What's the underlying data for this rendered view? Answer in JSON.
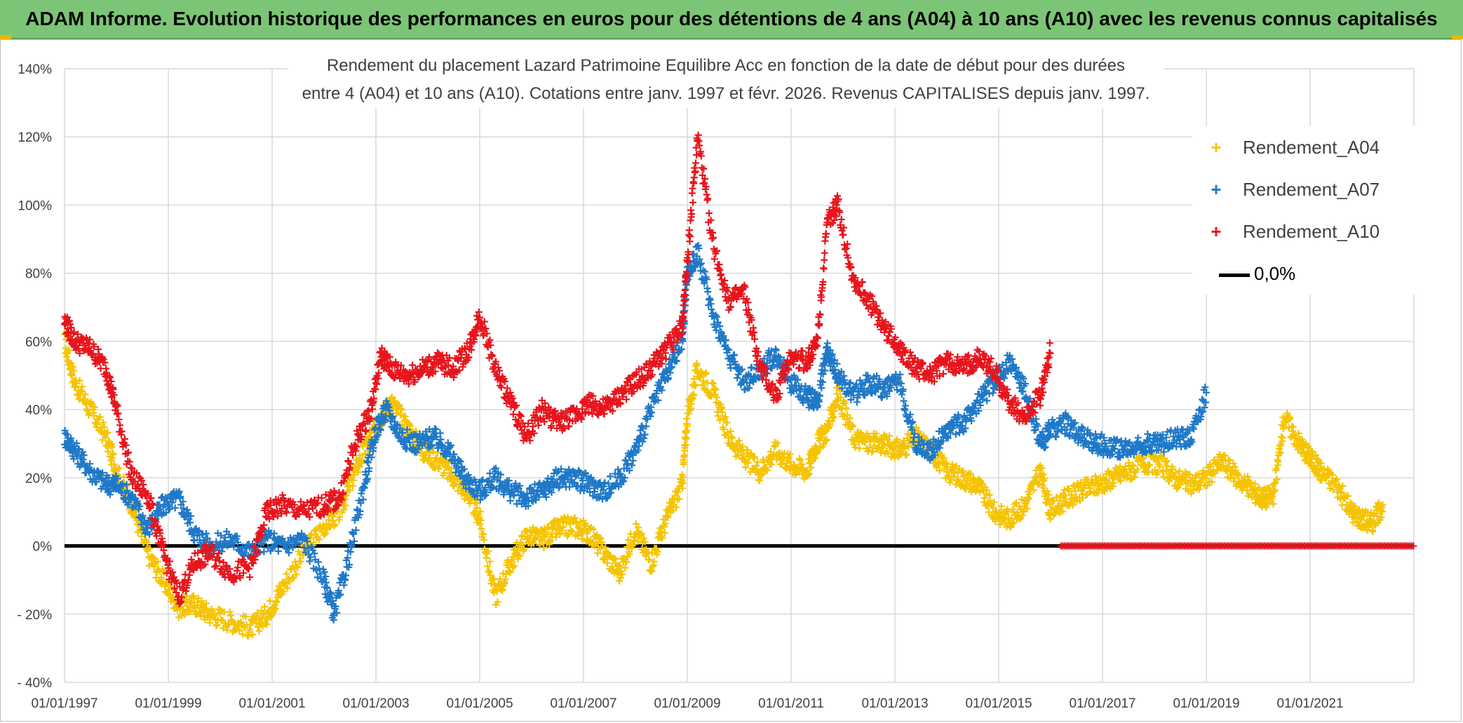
{
  "banner": {
    "title": "ADAM Informe. Evolution historique des performances en euros pour des détentions de 4 ans (A04) à 10 ans (A10) avec les revenus connus capitalisés"
  },
  "chart_data": {
    "type": "scatter",
    "title_line1": "Rendement du placement Lazard Patrimoine Equilibre Acc en fonction de la date de début pour des durées",
    "title_line2": "entre 4 (A04) et 10 ans (A10). Cotations entre janv. 1997 et févr. 2026. Revenus CAPITALISES depuis janv. 1997.",
    "xlabel": "",
    "ylabel": "",
    "x_range": [
      "01/01/1997",
      "01/01/2023"
    ],
    "ylim": [
      -40,
      140
    ],
    "y_ticks": [
      "140%",
      "120%",
      "100%",
      "80%",
      "60%",
      "40%",
      "20%",
      "0%",
      "- 20%",
      "- 40%"
    ],
    "y_tick_values": [
      140,
      120,
      100,
      80,
      60,
      40,
      20,
      0,
      -20,
      -40
    ],
    "x_ticks": [
      "01/01/1997",
      "01/01/1999",
      "01/01/2001",
      "01/01/2003",
      "01/01/2005",
      "01/01/2007",
      "01/01/2009",
      "01/01/2011",
      "01/01/2013",
      "01/01/2015",
      "01/01/2017",
      "01/01/2019",
      "01/01/2021"
    ],
    "x_tick_values": [
      1997,
      1999,
      2001,
      2003,
      2005,
      2007,
      2009,
      2011,
      2013,
      2015,
      2017,
      2019,
      2021
    ],
    "grid": true,
    "legend_position": "top-right",
    "series": [
      {
        "name": "Rendement_A04",
        "color": "#f5c400",
        "x": [
          1997.0,
          1997.2,
          1997.5,
          1997.8,
          1998.0,
          1998.3,
          1998.6,
          1998.9,
          1999.2,
          1999.5,
          1999.8,
          2000.2,
          2000.6,
          2000.9,
          2001.2,
          2001.6,
          2002.0,
          2002.3,
          2002.6,
          2002.9,
          2003.1,
          2003.3,
          2003.6,
          2003.9,
          2004.2,
          2004.5,
          2004.8,
          2005.0,
          2005.3,
          2005.6,
          2005.9,
          2006.2,
          2006.5,
          2006.8,
          2007.1,
          2007.4,
          2007.7,
          2008.0,
          2008.3,
          2008.6,
          2008.9,
          2009.0,
          2009.2,
          2009.5,
          2009.8,
          2010.1,
          2010.4,
          2010.7,
          2011.0,
          2011.3,
          2011.5,
          2011.7,
          2011.9,
          2012.2,
          2012.5,
          2012.8,
          2013.1,
          2013.4,
          2013.7,
          2014.0,
          2014.3,
          2014.6,
          2014.9,
          2015.2,
          2015.5,
          2015.8,
          2016.0,
          2016.3,
          2016.6,
          2016.9,
          2017.2,
          2017.5,
          2017.8,
          2018.1,
          2018.4,
          2018.7,
          2019.0,
          2019.3,
          2019.6,
          2019.9,
          2020.1,
          2020.3,
          2020.5,
          2020.8,
          2021.0,
          2021.2,
          2021.5,
          2021.8,
          2022.0,
          2022.2,
          2022.4
        ],
        "values": [
          60,
          48,
          40,
          32,
          22,
          12,
          -2,
          -10,
          -18,
          -17,
          -20,
          -22,
          -24,
          -20,
          -12,
          -2,
          6,
          10,
          22,
          32,
          38,
          42,
          35,
          28,
          25,
          20,
          15,
          8,
          -15,
          -5,
          3,
          2,
          5,
          6,
          4,
          -2,
          -8,
          5,
          -5,
          8,
          18,
          38,
          52,
          45,
          32,
          26,
          22,
          28,
          24,
          22,
          30,
          34,
          45,
          32,
          30,
          30,
          28,
          32,
          28,
          22,
          20,
          18,
          10,
          8,
          12,
          22,
          10,
          14,
          16,
          18,
          20,
          22,
          24,
          24,
          20,
          18,
          20,
          25,
          20,
          16,
          14,
          15,
          38,
          30,
          26,
          22,
          18,
          10,
          8,
          7,
          12
        ]
      },
      {
        "name": "Rendement_A07",
        "color": "#1f78c8",
        "x": [
          1997.0,
          1997.2,
          1997.5,
          1997.8,
          1998.0,
          1998.3,
          1998.6,
          1998.9,
          1999.2,
          1999.5,
          1999.8,
          2000.2,
          2000.6,
          2000.9,
          2001.2,
          2001.6,
          2002.0,
          2002.2,
          2002.5,
          2002.8,
          2003.0,
          2003.2,
          2003.5,
          2003.8,
          2004.1,
          2004.4,
          2004.7,
          2005.0,
          2005.3,
          2005.6,
          2005.9,
          2006.2,
          2006.5,
          2006.8,
          2007.1,
          2007.4,
          2007.7,
          2008.0,
          2008.3,
          2008.6,
          2008.9,
          2009.0,
          2009.2,
          2009.5,
          2009.8,
          2010.1,
          2010.4,
          2010.7,
          2011.0,
          2011.3,
          2011.5,
          2011.7,
          2011.9,
          2012.2,
          2012.5,
          2012.8,
          2013.1,
          2013.4,
          2013.7,
          2014.0,
          2014.3,
          2014.6,
          2014.9,
          2015.2,
          2015.5,
          2015.8,
          2016.0,
          2016.3,
          2016.6,
          2016.9,
          2017.2,
          2017.5,
          2017.8,
          2018.1,
          2018.4,
          2018.7,
          2019.0
        ],
        "values": [
          32,
          28,
          22,
          18,
          18,
          14,
          5,
          12,
          14,
          4,
          0,
          2,
          -2,
          2,
          0,
          2,
          -10,
          -20,
          -2,
          20,
          34,
          40,
          32,
          30,
          32,
          28,
          20,
          16,
          20,
          16,
          14,
          16,
          20,
          20,
          18,
          16,
          20,
          28,
          40,
          50,
          60,
          80,
          86,
          68,
          56,
          48,
          52,
          56,
          48,
          44,
          42,
          58,
          50,
          44,
          48,
          46,
          48,
          30,
          28,
          34,
          36,
          42,
          48,
          54,
          46,
          30,
          34,
          36,
          32,
          30,
          29,
          28,
          30,
          30,
          32,
          32,
          45
        ]
      },
      {
        "name": "Rendement_A10",
        "color": "#e8141c",
        "x": [
          1997.0,
          1997.2,
          1997.5,
          1997.8,
          1998.0,
          1998.3,
          1998.6,
          1998.9,
          1999.2,
          1999.5,
          1999.8,
          2000.2,
          2000.6,
          2000.9,
          2001.2,
          2001.6,
          2002.0,
          2002.3,
          2002.6,
          2002.9,
          2003.1,
          2003.3,
          2003.6,
          2003.9,
          2004.2,
          2004.5,
          2004.8,
          2005.0,
          2005.3,
          2005.6,
          2005.9,
          2006.2,
          2006.5,
          2006.8,
          2007.1,
          2007.4,
          2007.7,
          2008.0,
          2008.3,
          2008.6,
          2008.9,
          2009.0,
          2009.2,
          2009.5,
          2009.8,
          2010.1,
          2010.4,
          2010.7,
          2011.0,
          2011.3,
          2011.5,
          2011.7,
          2011.9,
          2012.2,
          2012.5,
          2012.8,
          2013.1,
          2013.4,
          2013.7,
          2014.0,
          2014.3,
          2014.6,
          2014.9,
          2015.2,
          2015.5,
          2015.8,
          2016.0,
          2016.2
        ],
        "values": [
          66,
          60,
          58,
          52,
          40,
          20,
          15,
          -2,
          -15,
          -5,
          -2,
          -8,
          -6,
          10,
          12,
          10,
          12,
          14,
          30,
          40,
          56,
          52,
          50,
          52,
          54,
          52,
          58,
          68,
          52,
          42,
          32,
          40,
          36,
          38,
          42,
          40,
          44,
          48,
          52,
          58,
          64,
          84,
          120,
          88,
          72,
          74,
          52,
          44,
          56,
          54,
          60,
          95,
          100,
          78,
          72,
          64,
          58,
          52,
          50,
          54,
          52,
          55,
          52,
          42,
          38,
          44,
          58,
          0
        ]
      },
      {
        "name": "0,0%",
        "color": "#000000",
        "x": [
          1997,
          2023
        ],
        "values": [
          0,
          0
        ]
      }
    ],
    "a10_zero_segment": {
      "x_start": 2016.2,
      "x_end": 2023.0,
      "value": 0
    }
  }
}
